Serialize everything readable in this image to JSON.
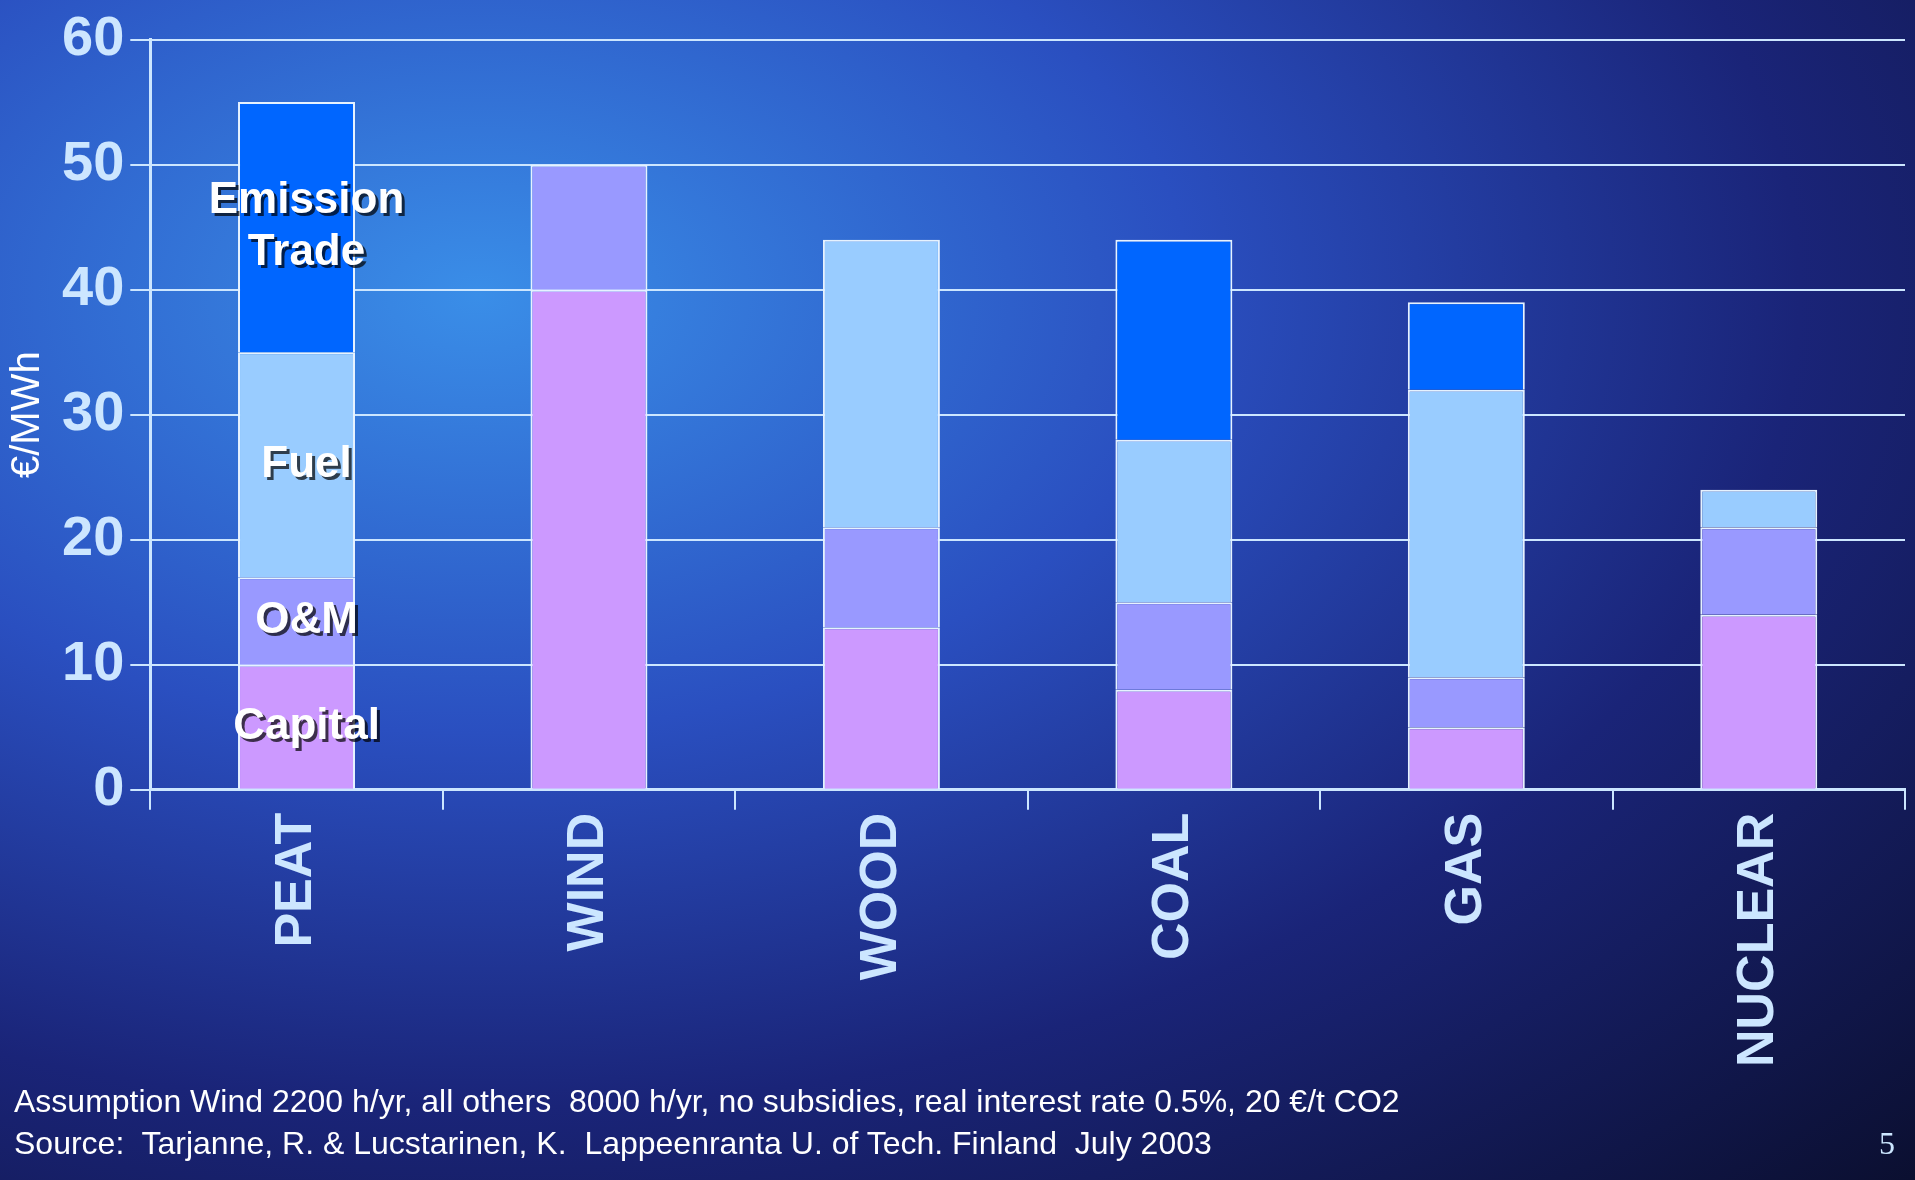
{
  "chart_data": {
    "type": "bar",
    "stacked": true,
    "ylabel": "€/MWh",
    "categories": [
      "PEAT",
      "WIND",
      "WOOD",
      "COAL",
      "GAS",
      "NUCLEAR"
    ],
    "series": [
      {
        "name": "Capital",
        "color": "#cc99ff",
        "values": [
          10,
          40,
          13,
          8,
          5,
          14
        ]
      },
      {
        "name": "O&M",
        "color": "#9999ff",
        "values": [
          7,
          10,
          8,
          7,
          4,
          7
        ]
      },
      {
        "name": "Fuel",
        "color": "#99ccff",
        "values": [
          18,
          null,
          23,
          13,
          23,
          3
        ]
      },
      {
        "name": "Emission Trade",
        "color": "#0066ff",
        "values": [
          20,
          null,
          null,
          16,
          7,
          null
        ]
      }
    ],
    "ylim": [
      0,
      60
    ],
    "yticks": [
      0,
      10,
      20,
      30,
      40,
      50,
      60
    ],
    "grid": "y",
    "legend": false,
    "annotations": [
      "Assumption Wind 2200 h/yr, all others  8000 h/yr, no subsidies, real interest rate 0.5%, 20 €/t CO2",
      "Source:  Tarjanne, R. & Lucstarinen, K.  Lappeenranta U. of Tech. Finland  July 2003",
      "5"
    ]
  }
}
